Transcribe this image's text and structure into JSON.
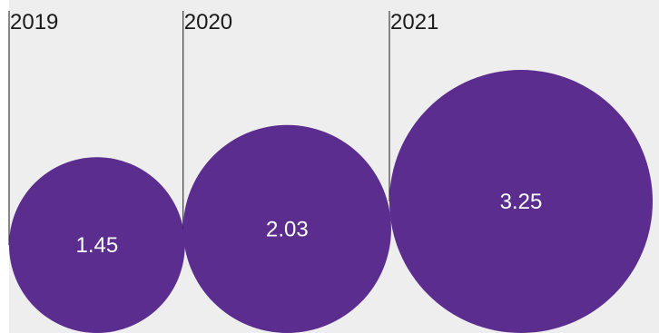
{
  "colors": {
    "background": "#eeeeee",
    "bubble": "#5b2d8e",
    "label": "#1a1a1a",
    "value_text": "#ffffff",
    "divider": "#1a1a1a"
  },
  "chart_data": {
    "type": "bubble",
    "title": "",
    "xlabel": "",
    "ylabel": "",
    "categories": [
      "2019",
      "2020",
      "2021"
    ],
    "values": [
      1.45,
      2.03,
      3.25
    ],
    "value_labels": [
      "1.45",
      "2.03",
      "3.25"
    ],
    "size_encoding": "area",
    "grid": false,
    "legend": "none"
  }
}
